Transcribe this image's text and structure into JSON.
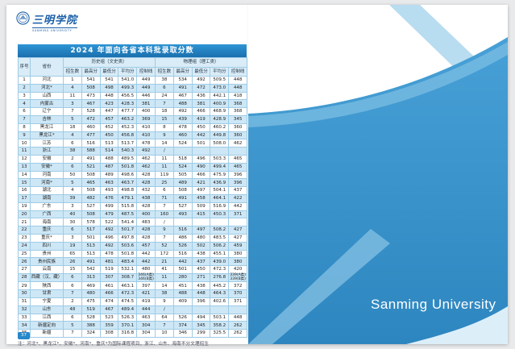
{
  "page": {
    "logo_cn": "三明学院",
    "logo_en": "SANMING UNIVERSITY",
    "page_number": "37",
    "right_panel_text": "Sanming University"
  },
  "colors": {
    "title_bar_blue": "#1d7dc4",
    "header_bg": "#d9ecf7",
    "row_alt_bg": "#cde7f6",
    "panel_blue": "#3f9bd4",
    "panel_light_blue": "#b8dcf0",
    "logo_blue": "#1a5fa8",
    "page_badge_blue": "#2688c8"
  },
  "table": {
    "title": "2024 年面向各省本科批录取分数",
    "headers": {
      "index": "序号",
      "province": "省份",
      "history_group": "历史组（文史类）",
      "physics_group": "物理组（理工类）",
      "sub": [
        "招生数",
        "最高分",
        "最低分",
        "平均分",
        "控制线"
      ]
    },
    "rows": [
      [
        "1",
        "河北",
        "1",
        "541",
        "541",
        "541.0",
        "449",
        "38",
        "534",
        "492",
        "509.5",
        "448"
      ],
      [
        "2",
        "河北*",
        "4",
        "508",
        "498",
        "499.3",
        "449",
        "6",
        "491",
        "472",
        "473.0",
        "448"
      ],
      [
        "3",
        "山西",
        "11",
        "473",
        "448",
        "456.5",
        "446",
        "24",
        "467",
        "436",
        "442.1",
        "418"
      ],
      [
        "4",
        "内蒙古",
        "3",
        "467",
        "423",
        "428.3",
        "381",
        "7",
        "488",
        "381",
        "400.9",
        "368"
      ],
      [
        "6",
        "辽宁",
        "7",
        "528",
        "447",
        "477.7",
        "400",
        "18",
        "492",
        "466",
        "468.9",
        "368"
      ],
      [
        "7",
        "吉林",
        "5",
        "472",
        "457",
        "463.2",
        "369",
        "15",
        "439",
        "419",
        "428.9",
        "345"
      ],
      [
        "8",
        "黑龙江",
        "18",
        "460",
        "452",
        "452.3",
        "410",
        "8",
        "478",
        "450",
        "460.2",
        "360"
      ],
      [
        "9",
        "黑龙江*",
        "4",
        "477",
        "450",
        "456.8",
        "410",
        "9",
        "460",
        "442",
        "449.8",
        "360"
      ],
      [
        "10",
        "江苏",
        "6",
        "516",
        "513",
        "513.7",
        "478",
        "14",
        "524",
        "501",
        "508.0",
        "462"
      ],
      [
        "11",
        "浙江",
        "38",
        "588",
        "514",
        "540.3",
        "492",
        "/",
        "",
        "",
        "",
        ""
      ],
      [
        "12",
        "安徽",
        "2",
        "491",
        "488",
        "489.5",
        "462",
        "11",
        "518",
        "496",
        "503.3",
        "465"
      ],
      [
        "13",
        "安徽*",
        "6",
        "521",
        "487",
        "501.8",
        "462",
        "11",
        "524",
        "490",
        "499.4",
        "465"
      ],
      [
        "14",
        "河南",
        "50",
        "508",
        "489",
        "498.6",
        "428",
        "119",
        "505",
        "466",
        "475.9",
        "396"
      ],
      [
        "15",
        "河南*",
        "5",
        "465",
        "463",
        "463.7",
        "428",
        "25",
        "489",
        "421",
        "436.9",
        "396"
      ],
      [
        "16",
        "湖北",
        "4",
        "508",
        "493",
        "498.8",
        "432",
        "6",
        "508",
        "497",
        "504.1",
        "437"
      ],
      [
        "17",
        "湖南",
        "39",
        "482",
        "476",
        "479.1",
        "438",
        "71",
        "491",
        "458",
        "464.1",
        "422"
      ],
      [
        "19",
        "广东",
        "3",
        "527",
        "499",
        "515.8",
        "428",
        "7",
        "527",
        "509",
        "516.9",
        "442"
      ],
      [
        "20",
        "广西",
        "40",
        "508",
        "479",
        "487.5",
        "400",
        "160",
        "493",
        "415",
        "450.3",
        "371"
      ],
      [
        "21",
        "海南",
        "30",
        "578",
        "522",
        "541.4",
        "483",
        "/",
        "",
        "",
        "",
        ""
      ],
      [
        "22",
        "重庆",
        "6",
        "517",
        "492",
        "501.7",
        "428",
        "9",
        "516",
        "497",
        "508.2",
        "427"
      ],
      [
        "23",
        "重庆*",
        "3",
        "501",
        "496",
        "497.8",
        "428",
        "7",
        "486",
        "480",
        "483.5",
        "427"
      ],
      [
        "24",
        "四川",
        "19",
        "513",
        "492",
        "503.6",
        "457",
        "52",
        "526",
        "502",
        "506.2",
        "459"
      ],
      [
        "25",
        "贵州",
        "65",
        "513",
        "478",
        "501.8",
        "442",
        "172",
        "516",
        "438",
        "455.1",
        "380"
      ],
      [
        "26",
        "贵州民族",
        "26",
        "491",
        "481",
        "483.4",
        "442",
        "21",
        "442",
        "437",
        "439.0",
        "380"
      ],
      [
        "27",
        "云南",
        "15",
        "542",
        "519",
        "532.1",
        "480",
        "41",
        "501",
        "450",
        "472.3",
        "420"
      ],
      [
        "28",
        "西藏（汉、藏）",
        "6",
        "313",
        "307",
        "308.7",
        "346(A类) 346(B类)",
        "11",
        "280",
        "271",
        "276.8",
        "339(A类) 339(B类)"
      ],
      [
        "29",
        "陕西",
        "6",
        "469",
        "461",
        "463.1",
        "397",
        "14",
        "451",
        "438",
        "445.2",
        "372"
      ],
      [
        "30",
        "甘肃",
        "7",
        "480",
        "466",
        "472.3",
        "421",
        "38",
        "488",
        "448",
        "464.3",
        "370"
      ],
      [
        "31",
        "宁夏",
        "2",
        "475",
        "474",
        "474.5",
        "419",
        "9",
        "409",
        "396",
        "402.6",
        "371"
      ],
      [
        "32",
        "山东",
        "48",
        "519",
        "467",
        "489.4",
        "444",
        "/",
        "",
        "",
        "",
        ""
      ],
      [
        "33",
        "江西",
        "6",
        "528",
        "523",
        "526.3",
        "463",
        "64",
        "526",
        "494",
        "503.1",
        "448"
      ],
      [
        "34",
        "新疆定向",
        "5",
        "388",
        "359",
        "370.1",
        "304",
        "7",
        "374",
        "345",
        "358.2",
        "262"
      ],
      [
        "35",
        "新疆",
        "7",
        "324",
        "308",
        "316.8",
        "304",
        "10",
        "346",
        "299",
        "325.5",
        "262"
      ]
    ],
    "note": "注：河北*、黑龙江*、安徽*、河南*、重庆*为国际课程项目，浙江、山东、海南不分文理招生"
  }
}
